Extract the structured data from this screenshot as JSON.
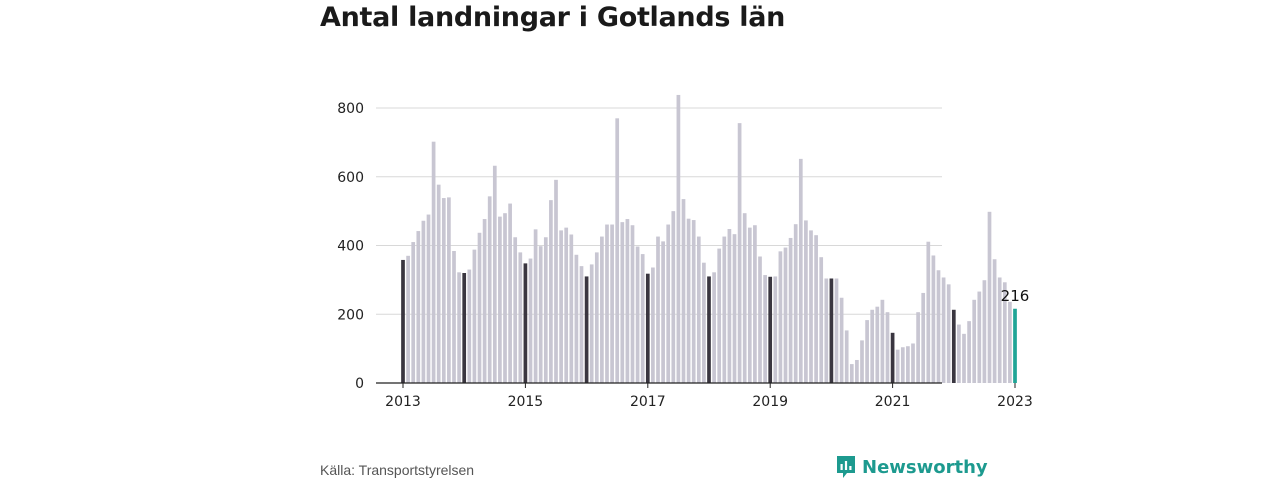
{
  "title": "Antal landningar i Gotlands län",
  "source": "Källa: Transportstyrelsen",
  "brand": "Newsworthy",
  "colors": {
    "bar": "#c8c6d2",
    "january": "#3a3640",
    "latest": "#1fa596",
    "grid": "#d8d8d8",
    "brand": "#1d9a8f"
  },
  "chart_data": {
    "type": "bar",
    "title": "Antal landningar i Gotlands län",
    "xlabel": "",
    "ylabel": "",
    "ylim": [
      0,
      850
    ],
    "yticks": [
      0,
      200,
      400,
      600,
      800
    ],
    "xtick_labels": [
      "2013",
      "2015",
      "2017",
      "2019",
      "2021",
      "2023"
    ],
    "grid": true,
    "highlight": "January of each year shown in dark, latest month shown in teal",
    "callout": {
      "label": "216",
      "value": 216
    },
    "series": [
      {
        "year": 2013,
        "values": [
          358,
          370,
          410,
          442,
          472,
          490,
          702,
          577,
          538,
          540,
          384,
          322
        ]
      },
      {
        "year": 2014,
        "values": [
          320,
          330,
          388,
          437,
          477,
          543,
          632,
          484,
          494,
          522,
          424,
          380
        ]
      },
      {
        "year": 2015,
        "values": [
          348,
          362,
          447,
          398,
          424,
          532,
          591,
          444,
          452,
          432,
          373,
          340
        ]
      },
      {
        "year": 2016,
        "values": [
          310,
          345,
          380,
          426,
          461,
          461,
          770,
          468,
          477,
          459,
          397,
          375
        ]
      },
      {
        "year": 2017,
        "values": [
          318,
          336,
          426,
          412,
          461,
          500,
          838,
          535,
          478,
          474,
          426,
          350
        ]
      },
      {
        "year": 2018,
        "values": [
          310,
          322,
          391,
          426,
          448,
          433,
          756,
          494,
          452,
          459,
          368,
          314
        ]
      },
      {
        "year": 2019,
        "values": [
          309,
          310,
          383,
          394,
          422,
          462,
          652,
          473,
          444,
          430,
          366,
          304
        ]
      },
      {
        "year": 2020,
        "values": [
          304,
          304,
          248,
          153,
          55,
          67,
          124,
          183,
          213,
          222,
          242,
          206
        ]
      },
      {
        "year": 2021,
        "values": [
          146,
          97,
          104,
          107,
          115,
          206,
          262,
          411,
          371,
          328,
          307,
          287
        ]
      },
      {
        "year": 2022,
        "values": [
          213,
          170,
          143,
          180,
          242,
          266,
          299,
          498,
          360,
          307,
          293,
          236
        ]
      },
      {
        "year": 2023,
        "values": [
          216
        ]
      }
    ]
  }
}
